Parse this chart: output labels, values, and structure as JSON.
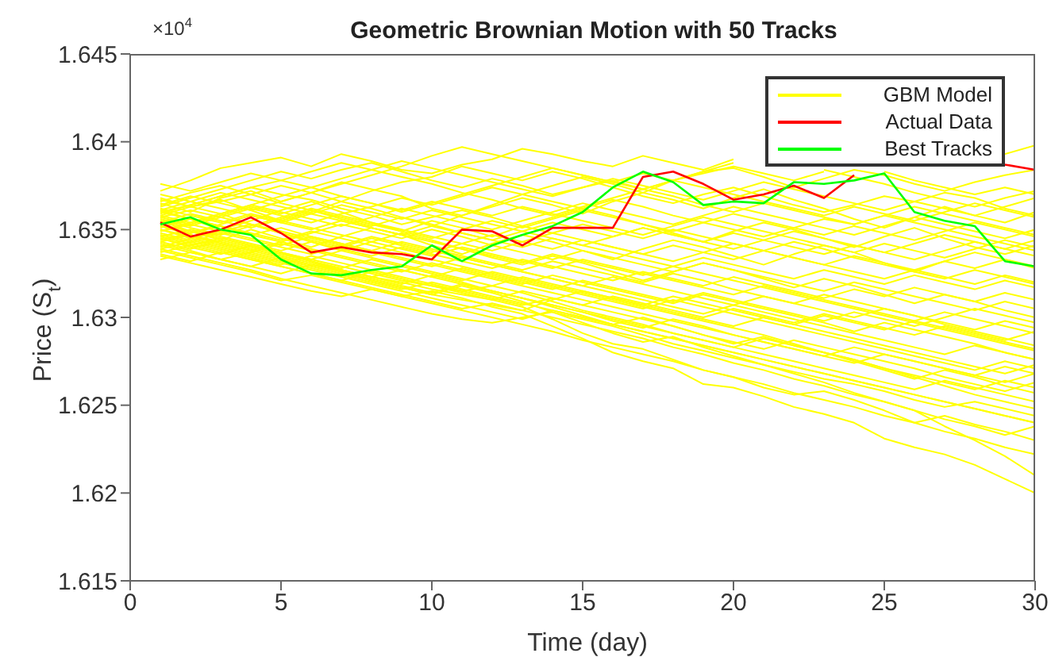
{
  "chart_data": {
    "type": "line",
    "title": "Geometric Brownian Motion with 50 Tracks",
    "xlabel": "Time (day)",
    "ylabel": "Price  (S$_{t}$)",
    "annotations": [
      "×10$^{4}$"
    ],
    "x": [
      1,
      2,
      3,
      4,
      5,
      6,
      7,
      8,
      9,
      10,
      11,
      12,
      13,
      14,
      15,
      16,
      17,
      18,
      19,
      20,
      21,
      22,
      23,
      24,
      25,
      26,
      27,
      28,
      29,
      30
    ],
    "xlim": [
      0,
      30
    ],
    "xticks": [
      0,
      5,
      10,
      15,
      20,
      25,
      30
    ],
    "ylim": [
      1.615,
      1.645
    ],
    "yticks": [
      1.615,
      1.62,
      1.625,
      1.63,
      1.635,
      1.64,
      1.645
    ],
    "legend": "top right",
    "series": [
      {
        "name": "GBM Model",
        "color": "#ffff00",
        "values": [
          1.6372,
          1.6378,
          1.6385,
          1.6388,
          1.6391,
          1.6386,
          1.6393,
          1.6389,
          1.6384,
          1.6382,
          1.6387,
          1.639,
          1.6396,
          1.6393,
          1.6389,
          1.6386,
          1.6392,
          1.6388,
          1.6384,
          1.639,
          null,
          null,
          null,
          null,
          null,
          null,
          null,
          null,
          1.6393,
          1.6398
        ]
      },
      {
        "color": "#ffff00",
        "values": [
          1.6365,
          1.636,
          1.6368,
          1.6372,
          1.6366,
          1.6371,
          1.6377,
          1.6373,
          1.6369,
          1.6362,
          1.6358,
          1.6364,
          1.637,
          1.6375,
          1.638,
          1.6376,
          1.6371,
          1.6378,
          1.6383,
          1.6385,
          1.638,
          1.6374,
          1.6379,
          1.6384,
          1.6381,
          1.6376,
          1.6372,
          1.6377,
          1.6381,
          1.6384
        ]
      },
      {
        "color": "#ffff00",
        "values": [
          1.6358,
          1.6363,
          1.6367,
          1.6361,
          1.6355,
          1.636,
          1.6366,
          1.6362,
          1.6357,
          1.6352,
          1.6358,
          1.6363,
          1.6368,
          1.6364,
          1.6359,
          1.6366,
          1.6371,
          1.6367,
          1.6362,
          1.6368,
          1.6373,
          1.6367,
          1.6362,
          1.6356,
          1.6351,
          1.6357,
          1.6363,
          1.6358,
          1.6354,
          1.636
        ]
      },
      {
        "color": "#ffff00",
        "values": [
          1.6361,
          1.6356,
          1.635,
          1.6355,
          1.6361,
          1.6366,
          1.636,
          1.6354,
          1.6349,
          1.6355,
          1.6351,
          1.6346,
          1.6352,
          1.6357,
          1.6362,
          1.6358,
          1.6353,
          1.6348,
          1.6343,
          1.6349,
          1.6354,
          1.635,
          1.6345,
          1.634,
          1.6346,
          1.6351,
          1.6345,
          1.634,
          1.6336,
          1.6341
        ]
      },
      {
        "color": "#ffff00",
        "values": [
          1.6355,
          1.6349,
          1.6344,
          1.635,
          1.6345,
          1.634,
          1.6346,
          1.6351,
          1.6347,
          1.6341,
          1.6336,
          1.6342,
          1.6347,
          1.6343,
          1.6338,
          1.6333,
          1.6339,
          1.6344,
          1.634,
          1.6335,
          1.633,
          1.6336,
          1.6341,
          1.6337,
          1.6331,
          1.6326,
          1.6332,
          1.6337,
          1.6333,
          1.6328
        ]
      },
      {
        "color": "#ffff00",
        "values": [
          1.6349,
          1.6354,
          1.6359,
          1.6353,
          1.6348,
          1.6343,
          1.6338,
          1.6343,
          1.6348,
          1.6344,
          1.6339,
          1.6334,
          1.633,
          1.6335,
          1.6331,
          1.6326,
          1.6321,
          1.6326,
          1.6331,
          1.6327,
          1.6322,
          1.6317,
          1.6322,
          1.6318,
          1.6313,
          1.6308,
          1.6313,
          1.6309,
          1.6304,
          1.63
        ]
      },
      {
        "color": "#ffff00",
        "values": [
          1.6345,
          1.634,
          1.6336,
          1.6341,
          1.6337,
          1.6332,
          1.6327,
          1.6323,
          1.6319,
          1.6324,
          1.632,
          1.6315,
          1.6311,
          1.6306,
          1.6301,
          1.6296,
          1.63,
          1.6295,
          1.629,
          1.6285,
          1.6289,
          1.6284,
          1.628,
          1.6275,
          1.627,
          1.6265,
          1.627,
          1.6266,
          1.6261,
          1.6257
        ]
      },
      {
        "color": "#ffff00",
        "values": [
          1.6342,
          1.6338,
          1.6333,
          1.6329,
          1.6325,
          1.633,
          1.6326,
          1.6321,
          1.6317,
          1.6313,
          1.6318,
          1.6314,
          1.6309,
          1.6303,
          1.6297,
          1.6291,
          1.6286,
          1.6289,
          1.6283,
          1.6278,
          1.6273,
          1.6268,
          1.6263,
          1.6257,
          1.6252,
          1.6247,
          1.6238,
          1.623,
          1.6221,
          1.621
        ]
      },
      {
        "color": "#ffff00",
        "values": [
          1.6338,
          1.6334,
          1.633,
          1.6326,
          1.6321,
          1.6324,
          1.632,
          1.6316,
          1.6312,
          1.6315,
          1.6311,
          1.6306,
          1.6302,
          1.6295,
          1.6288,
          1.628,
          1.6275,
          1.6271,
          1.6262,
          1.626,
          1.6255,
          1.6249,
          1.6245,
          1.624,
          1.6231,
          1.6226,
          1.6222,
          1.6216,
          1.6208,
          1.62
        ]
      },
      {
        "color": "#ffff00",
        "values": [
          1.6352,
          1.6347,
          1.6342,
          1.6338,
          1.6334,
          1.633,
          1.6327,
          1.6323,
          1.632,
          1.6316,
          1.6313,
          1.631,
          1.6306,
          1.6299,
          1.6291,
          1.6285,
          1.6282,
          1.6276,
          1.627,
          1.6266,
          1.626,
          1.6256,
          1.6258,
          1.6253,
          1.6247,
          1.624,
          1.6244,
          1.6239,
          1.6235,
          1.623
        ]
      },
      {
        "color": "#ffff00",
        "values": [
          1.6368,
          1.6363,
          1.6366,
          1.637,
          1.6375,
          1.6371,
          1.6366,
          1.6372,
          1.6377,
          1.638,
          1.6386,
          1.6382,
          1.6378,
          1.6383,
          1.6379,
          1.6374,
          1.6369,
          1.6365,
          1.637,
          1.6374,
          1.6369,
          1.6364,
          1.636,
          1.6364,
          1.6369,
          1.6366,
          1.6371,
          1.6368,
          1.6362,
          1.6358
        ]
      },
      {
        "color": "#ffff00",
        "values": [
          1.636,
          1.6364,
          1.6369,
          1.6374,
          1.637,
          1.6367,
          1.6362,
          1.6358,
          1.6353,
          1.6357,
          1.6361,
          1.6357,
          1.6352,
          1.6348,
          1.6353,
          1.6349,
          1.6345,
          1.635,
          1.6346,
          1.6342,
          1.6338,
          1.6343,
          1.6339,
          1.6334,
          1.633,
          1.6326,
          1.6322,
          1.6327,
          1.6323,
          1.6319
        ]
      },
      {
        "color": "#ffff00",
        "values": [
          1.6356,
          1.6352,
          1.6357,
          1.6362,
          1.6358,
          1.6354,
          1.6359,
          1.6363,
          1.6368,
          1.6364,
          1.6369,
          1.6374,
          1.637,
          1.6366,
          1.6362,
          1.6367,
          1.6363,
          1.6358,
          1.6354,
          1.635,
          1.6346,
          1.6351,
          1.6356,
          1.6353,
          1.6358,
          1.6363,
          1.6359,
          1.6355,
          1.6351,
          1.6347
        ]
      },
      {
        "color": "#ffff00",
        "values": [
          1.6351,
          1.6356,
          1.6352,
          1.6347,
          1.6343,
          1.6348,
          1.6353,
          1.6349,
          1.6345,
          1.635,
          1.6346,
          1.6341,
          1.6337,
          1.6333,
          1.6338,
          1.6334,
          1.633,
          1.6326,
          1.6331,
          1.6327,
          1.6323,
          1.6319,
          1.6315,
          1.632,
          1.6316,
          1.6312,
          1.6308,
          1.6304,
          1.6309,
          1.6305
        ]
      },
      {
        "color": "#ffff00",
        "values": [
          1.6347,
          1.6343,
          1.6348,
          1.6344,
          1.634,
          1.6336,
          1.6341,
          1.6337,
          1.6333,
          1.6329,
          1.6334,
          1.633,
          1.6326,
          1.6322,
          1.6318,
          1.6323,
          1.6319,
          1.6315,
          1.6311,
          1.6307,
          1.6312,
          1.6308,
          1.6304,
          1.63,
          1.6305,
          1.6301,
          1.6297,
          1.6293,
          1.6298,
          1.6294
        ]
      },
      {
        "color": "#ffff00",
        "values": [
          1.6344,
          1.6348,
          1.6352,
          1.6347,
          1.6351,
          1.6346,
          1.6342,
          1.6338,
          1.6343,
          1.6339,
          1.6335,
          1.6331,
          1.6327,
          1.6332,
          1.6328,
          1.6324,
          1.632,
          1.6325,
          1.6321,
          1.6316,
          1.6312,
          1.6308,
          1.6313,
          1.6309,
          1.6305,
          1.6301,
          1.6296,
          1.6292,
          1.6288,
          1.6284
        ]
      },
      {
        "color": "#ffff00",
        "values": [
          1.634,
          1.6345,
          1.6341,
          1.6337,
          1.6342,
          1.6338,
          1.6334,
          1.633,
          1.6326,
          1.6331,
          1.6327,
          1.6323,
          1.6319,
          1.6324,
          1.632,
          1.6316,
          1.6312,
          1.6308,
          1.6313,
          1.6309,
          1.6305,
          1.6301,
          1.6297,
          1.6292,
          1.6297,
          1.6293,
          1.6289,
          1.6285,
          1.628,
          1.6276
        ]
      },
      {
        "color": "#ffff00",
        "values": [
          1.6336,
          1.6332,
          1.6337,
          1.6333,
          1.6329,
          1.6325,
          1.6321,
          1.6326,
          1.6322,
          1.6318,
          1.6314,
          1.631,
          1.6315,
          1.6311,
          1.6307,
          1.6312,
          1.6308,
          1.6304,
          1.63,
          1.6305,
          1.6301,
          1.6297,
          1.6302,
          1.6298,
          1.6294,
          1.629,
          1.6295,
          1.6291,
          1.6287,
          1.6292
        ]
      },
      {
        "color": "#ffff00",
        "values": [
          1.6333,
          1.6337,
          1.6333,
          1.6329,
          1.6334,
          1.633,
          1.6326,
          1.6322,
          1.6318,
          1.6314,
          1.6319,
          1.6315,
          1.6311,
          1.6307,
          1.6303,
          1.6298,
          1.6294,
          1.6299,
          1.6295,
          1.629,
          1.6286,
          1.6282,
          1.6278,
          1.6274,
          1.6279,
          1.6275,
          1.6271,
          1.6267,
          1.6263,
          1.6268
        ]
      },
      {
        "color": "#ffff00",
        "values": [
          1.6363,
          1.6368,
          1.6373,
          1.6378,
          1.6383,
          1.6379,
          1.6384,
          1.6388,
          1.6383,
          1.6378,
          1.6374,
          1.6379,
          1.6375,
          1.637,
          1.6374,
          1.6378,
          1.6373,
          1.6369,
          1.6364,
          1.636,
          1.6365,
          1.6361,
          1.6357,
          1.6353,
          1.6358,
          1.6354,
          1.635,
          1.6346,
          1.6342,
          1.6338
        ]
      },
      {
        "color": "#ffff00",
        "values": [
          1.6358,
          1.6354,
          1.6359,
          1.6364,
          1.6369,
          1.6374,
          1.6369,
          1.6365,
          1.636,
          1.6365,
          1.637,
          1.6375,
          1.638,
          1.6385,
          1.6381,
          1.6377,
          1.6373,
          1.6378,
          1.6382,
          1.6386,
          1.6382,
          1.6378,
          1.6383,
          null,
          1.6383,
          1.6378,
          1.6374,
          1.637,
          1.6374,
          1.637
        ]
      },
      {
        "color": "#ffff00",
        "values": [
          1.6354,
          1.6359,
          1.6355,
          1.6351,
          1.6356,
          1.6361,
          1.6357,
          1.6353,
          1.6349,
          1.6345,
          1.635,
          1.6355,
          1.6351,
          1.6356,
          1.6361,
          1.6357,
          1.6353,
          1.6349,
          1.6354,
          1.6359,
          1.6355,
          1.6351,
          1.6347,
          1.6352,
          1.6348,
          1.6344,
          1.6349,
          1.6354,
          1.635,
          1.6346
        ]
      },
      {
        "color": "#ffff00",
        "values": [
          1.635,
          1.6345,
          1.6349,
          1.6353,
          1.6348,
          1.6344,
          1.634,
          1.6345,
          1.6341,
          1.6337,
          1.6342,
          1.6347,
          1.6343,
          1.6339,
          1.6344,
          1.634,
          1.6336,
          1.6341,
          1.6337,
          1.6333,
          1.6338,
          1.6334,
          1.633,
          1.6335,
          1.6331,
          1.6327,
          1.6332,
          1.6328,
          1.6333,
          1.6329
        ]
      },
      {
        "color": "#ffff00",
        "values": [
          1.6346,
          1.635,
          1.6346,
          1.6342,
          1.6338,
          1.6343,
          1.6339,
          1.6335,
          1.634,
          1.6336,
          1.6332,
          1.6328,
          1.6333,
          1.6329,
          1.6325,
          1.6321,
          1.6326,
          1.6322,
          1.6318,
          1.6323,
          1.6319,
          1.6315,
          1.6311,
          1.6316,
          1.6312,
          1.6317,
          1.6313,
          1.6309,
          1.6314,
          1.631
        ]
      },
      {
        "color": "#ffff00",
        "values": [
          1.6343,
          1.6339,
          1.6344,
          1.634,
          1.6336,
          1.6332,
          1.6328,
          1.6333,
          1.6329,
          1.6325,
          1.6321,
          1.6326,
          1.6322,
          1.6318,
          1.6314,
          1.631,
          1.6306,
          1.6302,
          1.6298,
          1.6294,
          1.629,
          1.6285,
          1.628,
          1.6276,
          1.6271,
          1.6266,
          1.6261,
          1.6256,
          1.6252,
          1.6248
        ]
      },
      {
        "color": "#ffff00",
        "values": [
          1.6339,
          1.6335,
          1.6331,
          1.6327,
          1.6322,
          1.6318,
          1.6314,
          1.631,
          1.6306,
          1.6302,
          1.6299,
          1.6297,
          1.63,
          1.6303,
          1.6299,
          1.6295,
          1.629,
          1.6285,
          1.6281,
          1.6277,
          1.6273,
          1.6269,
          1.6265,
          1.6262,
          1.6258,
          1.6253,
          1.6249,
          1.6252,
          1.6248,
          1.6244
        ]
      },
      {
        "color": "#ffff00",
        "values": [
          1.6335,
          1.6331,
          1.6327,
          1.6323,
          1.6319,
          1.6315,
          1.6312,
          1.6316,
          1.6312,
          1.6308,
          1.6304,
          1.63,
          1.6296,
          1.6292,
          1.6287,
          1.6283,
          1.6279,
          1.6275,
          1.627,
          1.6266,
          1.6262,
          1.6257,
          1.6253,
          1.6249,
          1.6244,
          1.624,
          1.6235,
          1.6231,
          1.6226,
          1.6222
        ]
      },
      {
        "color": "#ffff00",
        "values": [
          1.637,
          1.6366,
          1.6371,
          1.6367,
          1.6363,
          1.6359,
          1.6364,
          1.636,
          1.6356,
          1.6361,
          1.6357,
          1.6353,
          1.6349,
          1.6354,
          1.635,
          1.6346,
          1.6351,
          1.6347,
          1.6343,
          1.6348,
          1.6344,
          1.634,
          1.6336,
          1.6341,
          1.6337,
          1.6333,
          1.6338,
          1.6343,
          1.6339,
          1.6335
        ]
      },
      {
        "color": "#ffff00",
        "values": [
          1.6366,
          1.6371,
          1.6375,
          1.637,
          1.6365,
          1.6361,
          1.6356,
          1.6352,
          1.6357,
          1.6353,
          1.6348,
          1.6344,
          1.634,
          1.6345,
          1.6341,
          1.6337,
          1.6333,
          1.6329,
          1.6334,
          1.633,
          1.6326,
          1.6322,
          1.6327,
          1.6323,
          1.6319,
          1.6324,
          1.632,
          1.6316,
          1.6321,
          1.6317
        ]
      },
      {
        "color": "#ffff00",
        "values": [
          1.6362,
          1.6358,
          1.6354,
          1.6359,
          1.6355,
          1.6351,
          1.6347,
          1.6343,
          1.6339,
          1.6335,
          1.634,
          1.6336,
          1.6332,
          1.6328,
          1.6333,
          1.6329,
          1.6325,
          1.6321,
          1.6317,
          1.6313,
          1.6318,
          1.6314,
          1.631,
          1.6306,
          1.6302,
          1.6298,
          1.6303,
          1.6299,
          1.6295,
          1.6291
        ]
      },
      {
        "color": "#ffff00",
        "values": [
          1.6357,
          1.6361,
          1.6357,
          1.6353,
          1.6349,
          1.6345,
          1.6341,
          1.6346,
          1.6342,
          1.6338,
          1.6334,
          1.633,
          1.6326,
          1.6322,
          1.6318,
          1.6314,
          1.631,
          1.6306,
          1.6302,
          1.6307,
          1.6303,
          1.6299,
          1.6295,
          1.6291,
          1.6287,
          1.6283,
          1.6279,
          1.6284,
          1.628,
          1.6276
        ]
      },
      {
        "color": "#ffff00",
        "values": [
          1.6353,
          1.6349,
          1.6345,
          1.6341,
          1.6337,
          1.6333,
          1.6329,
          1.6325,
          1.6321,
          1.6318,
          1.6315,
          1.6318,
          1.6314,
          1.6309,
          1.6304,
          1.63,
          1.6296,
          1.6291,
          1.6287,
          1.6283,
          1.6288,
          1.6284,
          1.628,
          1.6276,
          1.6271,
          1.6267,
          1.6263,
          1.6259,
          1.6264,
          1.626
        ]
      },
      {
        "color": "#ffff00",
        "values": [
          1.6348,
          1.6344,
          1.634,
          1.6336,
          1.6332,
          1.6328,
          1.6324,
          1.632,
          1.6316,
          1.632,
          1.6316,
          1.6312,
          1.6308,
          1.6304,
          1.63,
          1.6296,
          1.6292,
          1.6288,
          1.6284,
          1.628,
          1.6276,
          1.6272,
          1.6268,
          1.6264,
          1.626,
          1.6256,
          1.6252,
          1.6248,
          1.6244,
          1.624
        ]
      },
      {
        "color": "#ffff00",
        "values": [
          1.6364,
          1.6369,
          1.6365,
          1.6361,
          1.6366,
          1.6371,
          1.6376,
          1.6381,
          1.6386,
          1.6392,
          1.6397,
          1.6393,
          1.6389,
          1.6385,
          1.6381,
          1.6377,
          1.6382,
          1.6378,
          1.6374,
          1.637,
          1.6366,
          1.6362,
          1.6358,
          1.6363,
          1.6359,
          1.6355,
          1.636,
          1.6365,
          1.6361,
          1.6357
        ]
      },
      {
        "color": "#ffff00",
        "values": [
          1.6359,
          1.6364,
          1.6369,
          1.6374,
          1.6378,
          1.6383,
          1.6388,
          1.6384,
          1.638,
          1.6376,
          1.6371,
          1.6367,
          1.6362,
          1.6358,
          1.6363,
          1.6368,
          1.6373,
          1.6378,
          1.6383,
          1.6388,
          null,
          null,
          1.6384,
          1.638,
          1.6376,
          1.6371,
          1.6367,
          1.6363,
          1.6368,
          1.6372
        ]
      },
      {
        "color": "#ffff00",
        "values": [
          1.6357,
          1.6353,
          1.6358,
          1.6363,
          1.6359,
          1.6364,
          1.6369,
          1.6365,
          1.6361,
          1.6366,
          1.6362,
          1.6358,
          1.6363,
          1.6359,
          1.6355,
          1.6351,
          1.6347,
          1.6352,
          1.6357,
          1.6353,
          1.6349,
          1.6345,
          1.6341,
          1.6337,
          1.6342,
          1.6338,
          1.6334,
          1.6339,
          1.6344,
          1.634
        ]
      },
      {
        "color": "#ffff00",
        "values": [
          1.6352,
          1.6348,
          1.6353,
          1.6358,
          1.6354,
          1.635,
          1.6355,
          1.6351,
          1.6347,
          1.6343,
          1.6339,
          1.6335,
          1.6331,
          1.6336,
          1.6332,
          1.6328,
          1.6324,
          1.6329,
          1.6325,
          1.6321,
          1.6317,
          1.6313,
          1.6309,
          1.6305,
          1.6301,
          1.6297,
          1.6293,
          1.6289,
          1.6285,
          1.6281
        ]
      },
      {
        "color": "#ffff00",
        "values": [
          1.6349,
          1.6353,
          1.6349,
          1.6345,
          1.6341,
          1.6346,
          1.6342,
          1.6338,
          1.6334,
          1.633,
          1.6326,
          1.6322,
          1.6318,
          1.6314,
          1.631,
          1.6306,
          1.6302,
          1.6298,
          1.6294,
          1.629,
          1.6286,
          1.6282,
          1.6278,
          1.6283,
          1.6279,
          1.6275,
          1.6271,
          1.6267,
          1.6272,
          1.6268
        ]
      },
      {
        "color": "#ffff00",
        "values": [
          1.6345,
          1.6341,
          1.6337,
          1.6333,
          1.6329,
          1.6325,
          1.6321,
          1.6317,
          1.6313,
          1.6309,
          1.6305,
          1.6308,
          1.6304,
          1.63,
          1.6296,
          1.6292,
          1.6288,
          1.6283,
          1.6279,
          1.6274,
          1.627,
          1.6265,
          1.6261,
          1.6256,
          1.6252,
          1.6247,
          1.6242,
          1.6238,
          1.6233,
          1.6238
        ]
      },
      {
        "color": "#ffff00",
        "values": [
          1.6341,
          1.6337,
          1.6333,
          1.6337,
          1.6333,
          1.6329,
          1.6325,
          1.6321,
          1.6317,
          1.6313,
          1.631,
          1.6307,
          1.6304,
          1.631,
          1.6315,
          1.6311,
          1.6307,
          1.6303,
          1.6299,
          1.6295,
          1.63,
          1.6296,
          1.6292,
          1.6288,
          1.6284,
          1.628,
          1.6276,
          1.6272,
          1.6268,
          1.6273
        ]
      },
      {
        "color": "#ffff00",
        "values": [
          1.6337,
          1.6341,
          1.6345,
          1.6341,
          1.6337,
          1.6333,
          1.6338,
          1.6334,
          1.633,
          1.6326,
          1.6322,
          1.6318,
          1.6323,
          1.6319,
          1.6315,
          1.6311,
          1.6307,
          1.6312,
          1.6308,
          1.6304,
          1.63,
          1.6296,
          1.6301,
          1.6297,
          1.6293,
          1.6298,
          1.6294,
          1.629,
          1.6286,
          1.6282
        ]
      },
      {
        "color": "#ffff00",
        "values": [
          1.6367,
          1.6363,
          1.6359,
          1.6364,
          1.636,
          1.6356,
          1.6352,
          1.6357,
          1.6362,
          1.6358,
          1.6354,
          1.635,
          1.6355,
          1.636,
          1.6365,
          1.6361,
          1.6357,
          1.6353,
          1.6358,
          1.6363,
          1.6359,
          1.6355,
          1.6351,
          1.6347,
          1.6352,
          1.6357,
          1.6353,
          1.6349,
          1.6345,
          1.635
        ]
      },
      {
        "color": "#ffff00",
        "values": [
          1.6361,
          1.6366,
          1.6362,
          1.6358,
          1.6354,
          1.6359,
          1.6355,
          1.6351,
          1.6347,
          1.6352,
          1.6348,
          1.6344,
          1.6349,
          1.6345,
          1.6341,
          1.6346,
          1.6351,
          1.6347,
          1.6343,
          1.6339,
          1.6344,
          1.6349,
          1.6345,
          1.6341,
          1.6337,
          1.6342,
          1.6347,
          1.6343,
          1.6339,
          1.6344
        ]
      },
      {
        "color": "#ffff00",
        "values": [
          1.6355,
          1.6351,
          1.6347,
          1.6352,
          1.6357,
          1.6362,
          1.6358,
          1.6354,
          1.635,
          1.6346,
          1.6342,
          1.6338,
          1.6343,
          1.6348,
          1.6344,
          1.634,
          1.6336,
          1.6332,
          1.6337,
          1.6342,
          1.6338,
          1.6334,
          1.633,
          1.6326,
          1.6322,
          1.6327,
          1.6323,
          1.6319,
          1.6324,
          1.632
        ]
      },
      {
        "color": "#ffff00",
        "values": [
          1.635,
          1.6346,
          1.6342,
          1.6338,
          1.6343,
          1.6339,
          1.6335,
          1.6331,
          1.6327,
          1.6323,
          1.6328,
          1.6324,
          1.632,
          1.6316,
          1.6321,
          1.6317,
          1.6313,
          1.6309,
          1.6314,
          1.631,
          1.6306,
          1.6302,
          1.6298,
          1.6303,
          1.6299,
          1.6295,
          1.63,
          1.6305,
          1.6301,
          1.6297
        ]
      },
      {
        "color": "#ffff00",
        "values": [
          1.6346,
          1.6342,
          1.6338,
          1.6334,
          1.633,
          1.6335,
          1.6331,
          1.6327,
          1.6323,
          1.6319,
          1.6315,
          1.6311,
          1.6307,
          1.6311,
          1.6307,
          1.6303,
          1.6299,
          1.6295,
          1.629,
          1.6286,
          1.6282,
          1.6287,
          1.6283,
          1.6279,
          1.6275,
          1.6271,
          1.6266,
          1.6262,
          1.6258,
          1.6263
        ]
      },
      {
        "color": "#ffff00",
        "values": [
          1.6343,
          1.6347,
          1.6343,
          1.6339,
          1.6335,
          1.6331,
          1.6327,
          1.6323,
          1.6327,
          1.6323,
          1.6319,
          1.6315,
          1.6311,
          1.6307,
          1.6303,
          1.6299,
          1.6295,
          1.6291,
          1.6287,
          1.6283,
          1.6279,
          1.6275,
          1.6271,
          1.6267,
          1.6263,
          1.6259,
          1.6264,
          1.626,
          1.6256,
          1.6252
        ]
      },
      {
        "color": "#ffff00",
        "values": [
          1.6339,
          1.6343,
          1.6339,
          1.6335,
          1.6331,
          1.6327,
          1.6323,
          1.6319,
          1.6315,
          1.6311,
          1.6307,
          1.6303,
          1.6299,
          1.6304,
          1.63,
          1.6296,
          1.6292,
          1.6288,
          1.6284,
          1.628,
          1.6276,
          1.6272,
          1.6268,
          1.6264,
          1.626,
          1.6256,
          1.6252,
          1.6248,
          1.6244,
          1.624
        ]
      },
      {
        "color": "#ffff00",
        "values": [
          1.6376,
          1.6372,
          1.6377,
          1.6382,
          1.6378,
          1.6374,
          1.6379,
          1.6384,
          1.6389,
          1.6385,
          1.6381,
          1.6377,
          1.6373,
          1.6369,
          1.6374,
          1.6379,
          1.6375,
          1.6371,
          1.6367,
          1.6372,
          1.6377,
          1.6373,
          1.6369,
          1.6365,
          1.6361,
          1.6366,
          1.6362,
          1.6358,
          1.6363,
          1.6368
        ]
      },
      {
        "color": "#ffff00",
        "values": [
          1.636,
          1.6356,
          1.6352,
          1.6348,
          1.6344,
          1.6349,
          1.6345,
          1.6341,
          1.6337,
          1.6333,
          1.6329,
          1.6325,
          1.6321,
          1.6317,
          1.6313,
          1.6309,
          1.6305,
          1.631,
          1.6306,
          1.6302,
          1.6298,
          1.6294,
          1.629,
          1.6286,
          1.6282,
          1.6278,
          1.6274,
          1.627,
          1.6275,
          1.6271
        ]
      },
      {
        "name": "Actual Data",
        "color": "#ff0000",
        "values": [
          1.6354,
          1.6346,
          1.635,
          1.6357,
          1.6348,
          1.6337,
          1.634,
          1.6337,
          1.6336,
          1.6333,
          1.635,
          1.6349,
          1.6341,
          1.6351,
          1.6351,
          1.6351,
          1.638,
          1.6383,
          1.6376,
          1.6367,
          1.637,
          1.6375,
          1.6368,
          1.6381,
          null,
          null,
          null,
          null,
          1.6387,
          1.6384
        ]
      },
      {
        "name": "Best Tracks",
        "color": "#00ff00",
        "values": [
          1.6353,
          1.6357,
          1.635,
          1.6347,
          1.6333,
          1.6325,
          1.6324,
          1.6327,
          1.6329,
          1.6341,
          1.6332,
          1.6341,
          1.6347,
          1.6352,
          1.636,
          1.6374,
          1.6383,
          1.6377,
          1.6364,
          1.6366,
          1.6365,
          1.6377,
          1.6376,
          1.6378,
          1.6382,
          1.636,
          1.6355,
          1.6352,
          1.6332,
          1.6329
        ]
      }
    ]
  }
}
